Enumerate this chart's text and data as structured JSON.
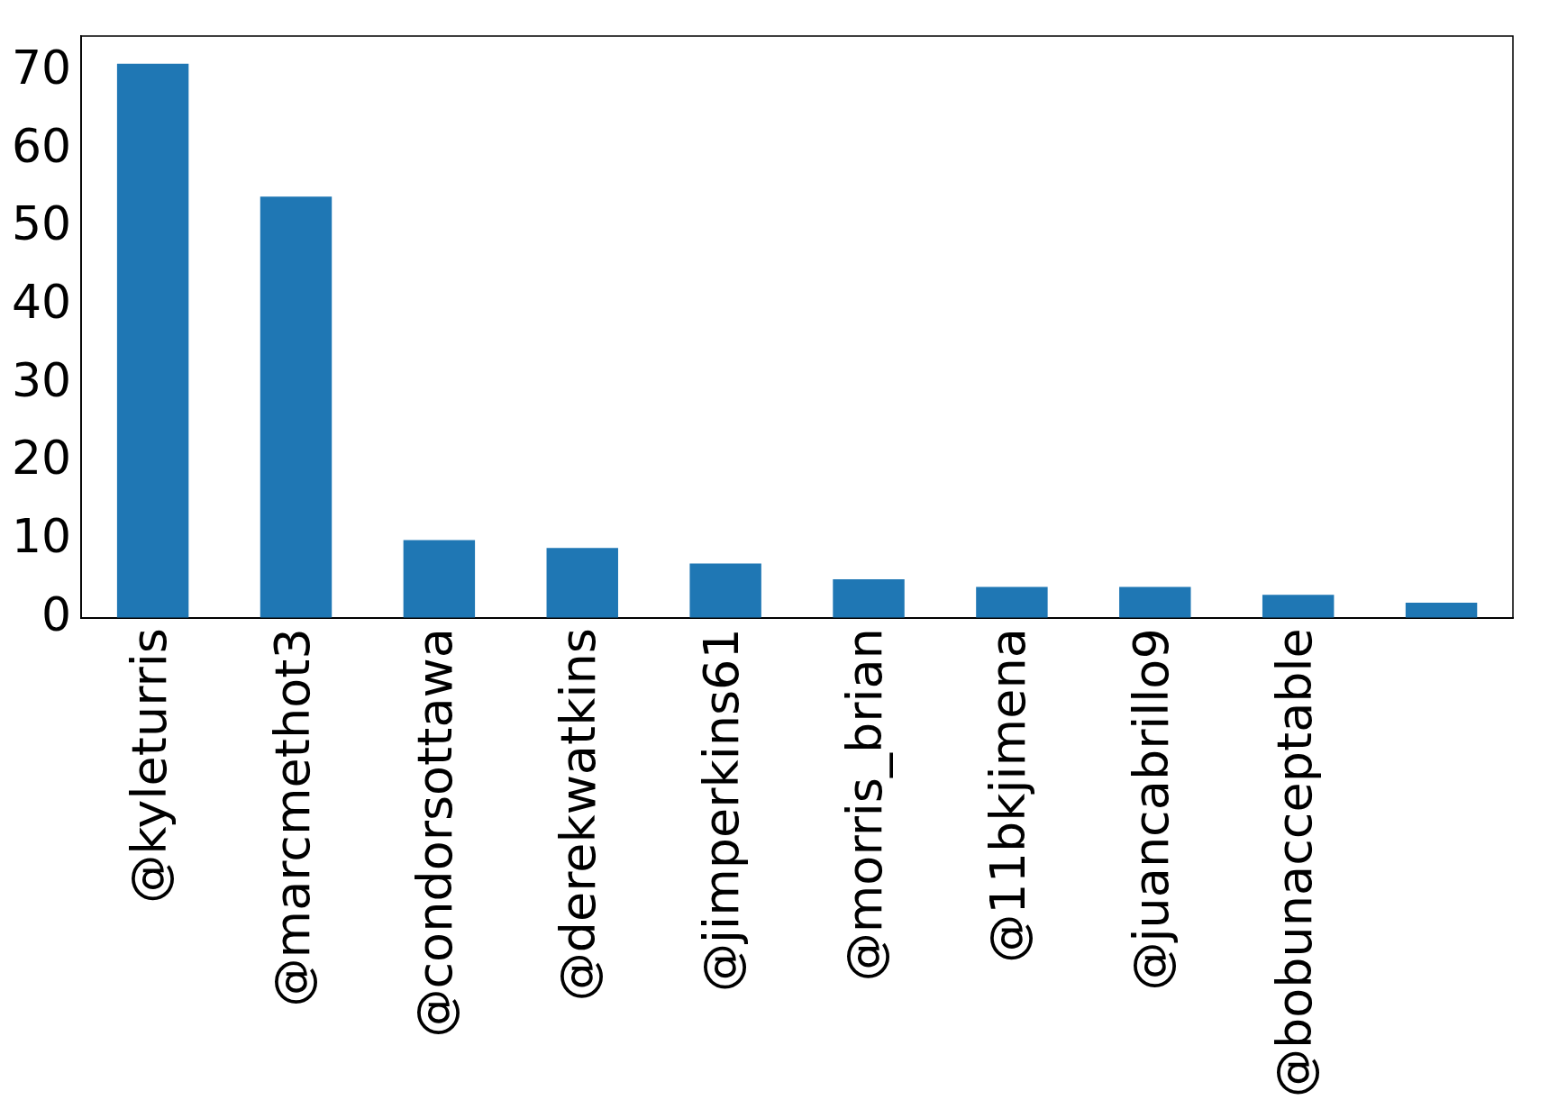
{
  "chart_data": {
    "type": "bar",
    "categories": [
      "@kyleturris",
      "@marcmethot3",
      "@condorsottawa",
      "@derekwatkins",
      "@jimperkins61",
      "@morris_brian",
      "@11bkjimena",
      "@juancabrillo9",
      "@bobunacceptable",
      null
    ],
    "values": [
      71,
      54,
      10,
      9,
      7,
      5,
      4,
      4,
      3,
      2
    ],
    "color": "#1f77b4",
    "ylim": [
      0,
      74.55
    ],
    "yticks": [
      0,
      10,
      20,
      30,
      40,
      50,
      60,
      70
    ],
    "grid": false,
    "legend": false
  }
}
